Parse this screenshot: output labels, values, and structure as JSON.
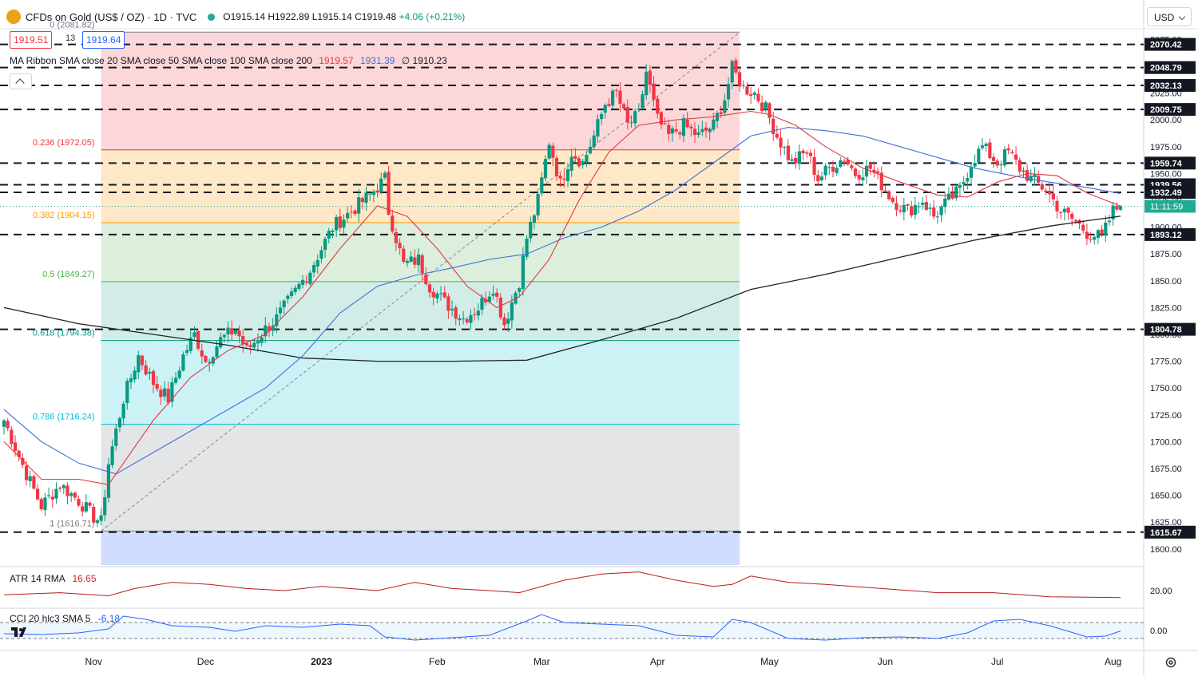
{
  "header": {
    "symbol": "CFDs on Gold (US$ / OZ) · 1D · TVC",
    "ohlc": "O1915.14  H1922.89  L1915.14  C1919.48",
    "change": "+4.06 (+0.21%)",
    "icon": "gold-coin-icon"
  },
  "price_boxes": {
    "bid": "1919.51",
    "spread": "13",
    "ask": "1919.64"
  },
  "ma_ribbon": {
    "label": "MA Ribbon SMA close 20 SMA close 50 SMA close 100 SMA close 200",
    "v1": "1919.57",
    "v2": "1931.39",
    "v3": "∅  1910.23"
  },
  "currency": "USD",
  "colors": {
    "up": "#089981",
    "down": "#f23645",
    "sma20": "#e0393e",
    "sma50": "#3d6fd9",
    "sma200": "#222222"
  },
  "chart_data": {
    "type": "candlestick",
    "title": "CFDs on Gold (US$ / OZ)",
    "timeframe": "1D",
    "ylim": [
      1585,
      2085
    ],
    "x_labels": [
      "Nov",
      "Dec",
      "2023",
      "Feb",
      "Mar",
      "Apr",
      "May",
      "Jun",
      "Jul",
      "Aug"
    ],
    "y_ticks": [
      "1600.00",
      "1625.00",
      "1650.00",
      "1675.00",
      "1700.00",
      "1725.00",
      "1750.00",
      "1775.00",
      "1800.00",
      "1825.00",
      "1850.00",
      "1875.00",
      "1900.00",
      "1925.00",
      "1950.00",
      "1975.00",
      "2000.00",
      "2025.00",
      "2050.00",
      "2075.00"
    ],
    "countdown": "11:11:59",
    "current_price": 1919.48,
    "levels": [
      {
        "value": 2070.42,
        "label": "2070.42"
      },
      {
        "value": 2048.79,
        "label": "2048.79"
      },
      {
        "value": 2032.13,
        "label": "2032.13"
      },
      {
        "value": 2009.75,
        "label": "2009.75"
      },
      {
        "value": 1959.74,
        "label": "1959.74"
      },
      {
        "value": 1939.56,
        "label": "1939.56"
      },
      {
        "value": 1932.49,
        "label": "1932.49"
      },
      {
        "value": 1893.12,
        "label": "1893.12"
      },
      {
        "value": 1804.78,
        "label": "1804.78"
      },
      {
        "value": 1615.67,
        "label": "1615.67"
      }
    ],
    "fibonacci": {
      "high": 2081.82,
      "low": 1616.71,
      "levels": [
        {
          "ratio": 0,
          "value": 2081.82,
          "label": "0 (2081.82)"
        },
        {
          "ratio": 0.236,
          "value": 1972.05,
          "label": "0.236 (1972.05)"
        },
        {
          "ratio": 0.382,
          "value": 1904.15,
          "label": "0.382 (1904.15)"
        },
        {
          "ratio": 0.5,
          "value": 1849.27,
          "label": "0.5 (1849.27)"
        },
        {
          "ratio": 0.618,
          "value": 1794.38,
          "label": "0.618 (1794.38)"
        },
        {
          "ratio": 0.786,
          "value": 1716.24,
          "label": "0.786 (1716.24)"
        },
        {
          "ratio": 1,
          "value": 1616.71,
          "label": "1 (1616.71)"
        }
      ]
    },
    "anchors": [
      {
        "d": 0,
        "p": 1720
      },
      {
        "d": 6,
        "p": 1670
      },
      {
        "d": 10,
        "p": 1640
      },
      {
        "d": 15,
        "p": 1660
      },
      {
        "d": 20,
        "p": 1645
      },
      {
        "d": 24,
        "p": 1630
      },
      {
        "d": 26,
        "p": 1625
      },
      {
        "d": 28,
        "p": 1680
      },
      {
        "d": 32,
        "p": 1740
      },
      {
        "d": 36,
        "p": 1780
      },
      {
        "d": 40,
        "p": 1755
      },
      {
        "d": 44,
        "p": 1740
      },
      {
        "d": 48,
        "p": 1780
      },
      {
        "d": 51,
        "p": 1800
      },
      {
        "d": 54,
        "p": 1775
      },
      {
        "d": 58,
        "p": 1795
      },
      {
        "d": 62,
        "p": 1805
      },
      {
        "d": 65,
        "p": 1785
      },
      {
        "d": 70,
        "p": 1805
      },
      {
        "d": 73,
        "p": 1815
      },
      {
        "d": 78,
        "p": 1840
      },
      {
        "d": 82,
        "p": 1860
      },
      {
        "d": 88,
        "p": 1900
      },
      {
        "d": 93,
        "p": 1915
      },
      {
        "d": 98,
        "p": 1930
      },
      {
        "d": 102,
        "p": 1945
      },
      {
        "d": 103,
        "p": 1915
      },
      {
        "d": 107,
        "p": 1865
      },
      {
        "d": 111,
        "p": 1870
      },
      {
        "d": 114,
        "p": 1845
      },
      {
        "d": 118,
        "p": 1830
      },
      {
        "d": 123,
        "p": 1815
      },
      {
        "d": 127,
        "p": 1825
      },
      {
        "d": 131,
        "p": 1845
      },
      {
        "d": 134,
        "p": 1810
      },
      {
        "d": 138,
        "p": 1850
      },
      {
        "d": 140,
        "p": 1890
      },
      {
        "d": 143,
        "p": 1925
      },
      {
        "d": 146,
        "p": 1980
      },
      {
        "d": 149,
        "p": 1940
      },
      {
        "d": 152,
        "p": 1970
      },
      {
        "d": 155,
        "p": 1960
      },
      {
        "d": 158,
        "p": 1985
      },
      {
        "d": 161,
        "p": 2015
      },
      {
        "d": 164,
        "p": 2025
      },
      {
        "d": 167,
        "p": 1995
      },
      {
        "d": 170,
        "p": 2005
      },
      {
        "d": 172,
        "p": 2045
      },
      {
        "d": 175,
        "p": 2000
      },
      {
        "d": 178,
        "p": 1985
      },
      {
        "d": 182,
        "p": 1995
      },
      {
        "d": 186,
        "p": 1985
      },
      {
        "d": 190,
        "p": 1995
      },
      {
        "d": 193,
        "p": 2020
      },
      {
        "d": 195,
        "p": 2048
      },
      {
        "d": 198,
        "p": 2030
      },
      {
        "d": 201,
        "p": 2025
      },
      {
        "d": 204,
        "p": 2010
      },
      {
        "d": 207,
        "p": 1985
      },
      {
        "d": 211,
        "p": 1960
      },
      {
        "d": 215,
        "p": 1970
      },
      {
        "d": 218,
        "p": 1945
      },
      {
        "d": 221,
        "p": 1955
      },
      {
        "d": 225,
        "p": 1965
      },
      {
        "d": 228,
        "p": 1950
      },
      {
        "d": 232,
        "p": 1955
      },
      {
        "d": 235,
        "p": 1940
      },
      {
        "d": 238,
        "p": 1925
      },
      {
        "d": 242,
        "p": 1915
      },
      {
        "d": 246,
        "p": 1925
      },
      {
        "d": 249,
        "p": 1910
      },
      {
        "d": 253,
        "p": 1925
      },
      {
        "d": 256,
        "p": 1935
      },
      {
        "d": 259,
        "p": 1960
      },
      {
        "d": 262,
        "p": 1975
      },
      {
        "d": 266,
        "p": 1960
      },
      {
        "d": 269,
        "p": 1970
      },
      {
        "d": 272,
        "p": 1955
      },
      {
        "d": 275,
        "p": 1945
      },
      {
        "d": 279,
        "p": 1935
      },
      {
        "d": 283,
        "p": 1915
      },
      {
        "d": 287,
        "p": 1905
      },
      {
        "d": 290,
        "p": 1895
      },
      {
        "d": 294,
        "p": 1890
      },
      {
        "d": 297,
        "p": 1915
      },
      {
        "d": 299,
        "p": 1919.48
      }
    ],
    "sma20": [
      [
        0,
        1700
      ],
      [
        10,
        1665
      ],
      [
        20,
        1665
      ],
      [
        28,
        1660
      ],
      [
        40,
        1720
      ],
      [
        50,
        1760
      ],
      [
        60,
        1785
      ],
      [
        70,
        1800
      ],
      [
        80,
        1835
      ],
      [
        90,
        1880
      ],
      [
        100,
        1920
      ],
      [
        108,
        1910
      ],
      [
        116,
        1880
      ],
      [
        124,
        1845
      ],
      [
        132,
        1825
      ],
      [
        138,
        1835
      ],
      [
        146,
        1870
      ],
      [
        154,
        1925
      ],
      [
        162,
        1970
      ],
      [
        170,
        1995
      ],
      [
        180,
        2000
      ],
      [
        190,
        2003
      ],
      [
        200,
        2008
      ],
      [
        205,
        2005
      ],
      [
        212,
        1995
      ],
      [
        220,
        1975
      ],
      [
        230,
        1955
      ],
      [
        240,
        1942
      ],
      [
        250,
        1930
      ],
      [
        258,
        1928
      ],
      [
        266,
        1942
      ],
      [
        274,
        1950
      ],
      [
        282,
        1948
      ],
      [
        290,
        1932
      ],
      [
        299,
        1919.57
      ]
    ],
    "sma50": [
      [
        0,
        1730
      ],
      [
        10,
        1700
      ],
      [
        20,
        1680
      ],
      [
        30,
        1670
      ],
      [
        40,
        1690
      ],
      [
        50,
        1710
      ],
      [
        60,
        1730
      ],
      [
        70,
        1750
      ],
      [
        80,
        1780
      ],
      [
        90,
        1820
      ],
      [
        100,
        1845
      ],
      [
        110,
        1855
      ],
      [
        120,
        1862
      ],
      [
        130,
        1870
      ],
      [
        140,
        1875
      ],
      [
        150,
        1890
      ],
      [
        160,
        1900
      ],
      [
        170,
        1915
      ],
      [
        180,
        1935
      ],
      [
        190,
        1960
      ],
      [
        200,
        1985
      ],
      [
        210,
        1993
      ],
      [
        220,
        1990
      ],
      [
        230,
        1985
      ],
      [
        240,
        1975
      ],
      [
        250,
        1965
      ],
      [
        260,
        1955
      ],
      [
        270,
        1948
      ],
      [
        280,
        1942
      ],
      [
        290,
        1937
      ],
      [
        299,
        1931.39
      ]
    ],
    "sma200": [
      [
        0,
        1825
      ],
      [
        20,
        1810
      ],
      [
        40,
        1800
      ],
      [
        60,
        1790
      ],
      [
        80,
        1778
      ],
      [
        100,
        1775
      ],
      [
        120,
        1775
      ],
      [
        140,
        1776
      ],
      [
        160,
        1795
      ],
      [
        180,
        1815
      ],
      [
        200,
        1842
      ],
      [
        220,
        1856
      ],
      [
        240,
        1872
      ],
      [
        260,
        1888
      ],
      [
        280,
        1901
      ],
      [
        290,
        1906
      ],
      [
        299,
        1910.23
      ]
    ]
  },
  "atr": {
    "label": "ATR 14 RMA",
    "value": "16.65",
    "tick": "20.00",
    "series": [
      [
        0,
        18
      ],
      [
        15,
        19
      ],
      [
        28,
        17.5
      ],
      [
        35,
        21
      ],
      [
        45,
        24
      ],
      [
        55,
        23
      ],
      [
        65,
        21
      ],
      [
        75,
        20
      ],
      [
        85,
        22
      ],
      [
        100,
        20
      ],
      [
        110,
        24
      ],
      [
        120,
        21
      ],
      [
        130,
        20
      ],
      [
        138,
        19
      ],
      [
        150,
        25
      ],
      [
        160,
        28
      ],
      [
        170,
        29
      ],
      [
        180,
        25
      ],
      [
        190,
        22
      ],
      [
        195,
        23
      ],
      [
        200,
        27
      ],
      [
        210,
        24
      ],
      [
        220,
        23
      ],
      [
        235,
        21
      ],
      [
        250,
        19
      ],
      [
        265,
        19
      ],
      [
        280,
        17
      ],
      [
        290,
        16.8
      ],
      [
        299,
        16.65
      ]
    ]
  },
  "cci": {
    "label": "CCI 20 hlc3 SMA 5",
    "value": "-6.18",
    "tick": "0.00",
    "series": [
      [
        0,
        -40
      ],
      [
        10,
        -50
      ],
      [
        20,
        -30
      ],
      [
        28,
        20
      ],
      [
        32,
        180
      ],
      [
        38,
        140
      ],
      [
        45,
        60
      ],
      [
        55,
        40
      ],
      [
        62,
        -10
      ],
      [
        70,
        60
      ],
      [
        80,
        40
      ],
      [
        90,
        80
      ],
      [
        98,
        60
      ],
      [
        102,
        -80
      ],
      [
        110,
        -120
      ],
      [
        120,
        -90
      ],
      [
        130,
        -60
      ],
      [
        140,
        120
      ],
      [
        144,
        200
      ],
      [
        150,
        100
      ],
      [
        160,
        80
      ],
      [
        170,
        60
      ],
      [
        180,
        -60
      ],
      [
        190,
        -80
      ],
      [
        195,
        140
      ],
      [
        200,
        100
      ],
      [
        210,
        -100
      ],
      [
        220,
        -120
      ],
      [
        230,
        -90
      ],
      [
        240,
        -80
      ],
      [
        250,
        -100
      ],
      [
        258,
        -30
      ],
      [
        265,
        120
      ],
      [
        272,
        140
      ],
      [
        280,
        60
      ],
      [
        290,
        -80
      ],
      [
        295,
        -70
      ],
      [
        299,
        -6.18
      ]
    ]
  }
}
